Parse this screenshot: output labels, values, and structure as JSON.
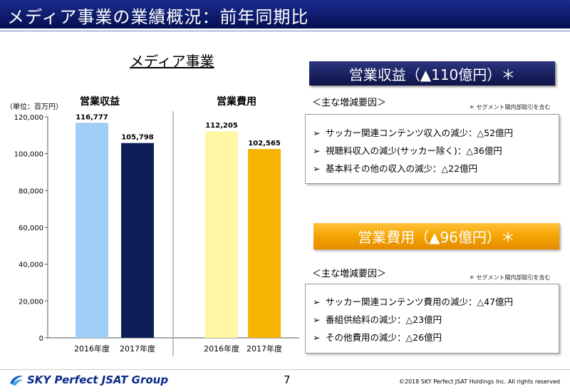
{
  "slide": {
    "title": "メディア事業の業績概況：前年同期比",
    "section_title": "メディア事業",
    "page_number": "7",
    "copyright": "©2018 SKY Perfect JSAT Holdings Inc. All rights reserved",
    "logo_text": "SKY Perfect JSAT Group"
  },
  "chart_data": {
    "type": "bar",
    "unit_label": "（単位：百万円）",
    "ylim": [
      0,
      120000
    ],
    "yticks": [
      "0",
      "20,000",
      "40,000",
      "60,000",
      "80,000",
      "100,000",
      "120,000"
    ],
    "grid": false,
    "groups": [
      {
        "label": "営業収益",
        "bars": [
          {
            "category": "2016年度",
            "value": 116777,
            "value_label": "116,777",
            "color": "#9fcdf5"
          },
          {
            "category": "2017年度",
            "value": 105798,
            "value_label": "105,798",
            "color": "#0c1f57"
          }
        ]
      },
      {
        "label": "営業費用",
        "bars": [
          {
            "category": "2016年度",
            "value": 112205,
            "value_label": "112,205",
            "color": "#fff7a3"
          },
          {
            "category": "2017年度",
            "value": 102565,
            "value_label": "102,565",
            "color": "#f5b400"
          }
        ]
      }
    ]
  },
  "revenue": {
    "banner": "営業収益（▲110億円）＊",
    "factors_heading": "＜主な増減要因＞",
    "note": "＊ セグメント間内部取引を含む",
    "items": [
      {
        "bullet": "➢",
        "text": "サッカー関連コンテンツ収入の減少：△52億円"
      },
      {
        "bullet": "➢",
        "text": "視聴料収入の減少(サッカー除く)：△36億円"
      },
      {
        "bullet": "➢",
        "text": "基本料その他の収入の減少：△22億円"
      }
    ]
  },
  "expense": {
    "banner": "営業費用（▲96億円）＊",
    "factors_heading": "＜主な増減要因＞",
    "note": "＊ セグメント間内部取引を含む",
    "items": [
      {
        "bullet": "➢",
        "text": "サッカー関連コンテンツ費用の減少：△47億円"
      },
      {
        "bullet": "➢",
        "text": "番組供給料の減少：△23億円"
      },
      {
        "bullet": "➢",
        "text": "その他費用の減少：△26億円"
      }
    ]
  }
}
